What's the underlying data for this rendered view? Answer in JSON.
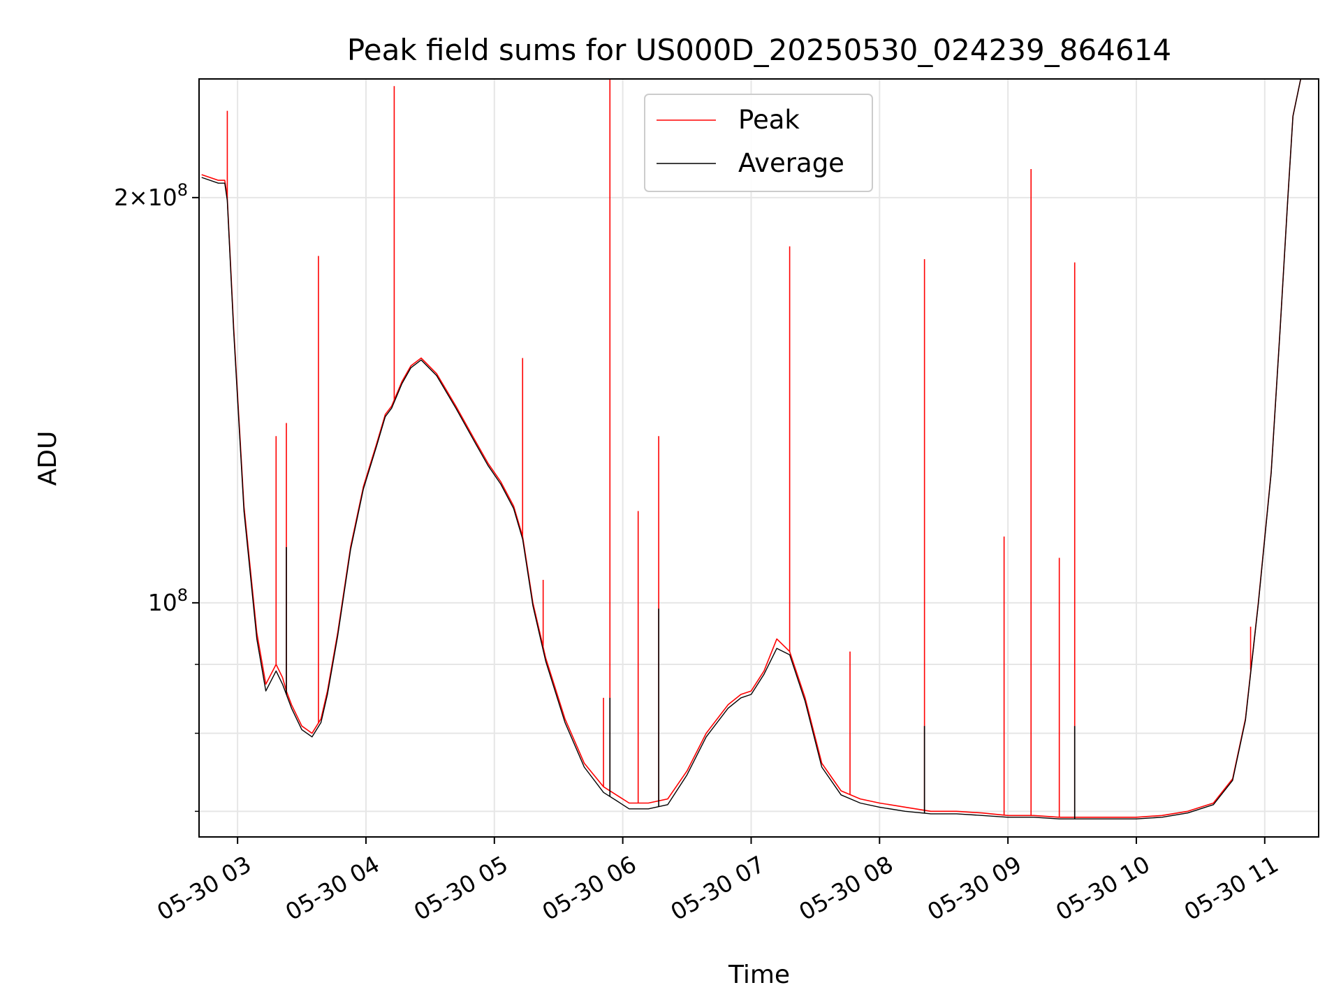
{
  "chart_data": {
    "type": "line",
    "title": "Peak field sums for US000D_20250530_024239_864614",
    "xlabel": "Time",
    "ylabel": "ADU",
    "x_unit": "hour",
    "x_date": "05-30",
    "xlim": [
      "05-30 02:42",
      "05-30 11:25"
    ],
    "yscale": "log",
    "ylim": [
      67000000,
      245000000
    ],
    "grid": true,
    "legend_position": "top-center",
    "x_ticks": [
      "05-30 03",
      "05-30 04",
      "05-30 05",
      "05-30 06",
      "05-30 07",
      "05-30 08",
      "05-30 09",
      "05-30 10",
      "05-30 11"
    ],
    "x_tick_values": [
      3,
      4,
      5,
      6,
      7,
      8,
      9,
      10,
      11
    ],
    "y_ticks": [
      {
        "value": 100000000,
        "label": "10^8"
      },
      {
        "value": 200000000,
        "label": "2×10^8"
      }
    ],
    "y_minor_ticks": [
      60000000,
      70000000,
      80000000,
      90000000
    ],
    "series": [
      {
        "name": "Peak",
        "color": "#ff0000",
        "x": [
          2.72,
          2.85,
          2.9,
          2.92,
          2.97,
          3.05,
          3.15,
          3.22,
          3.3,
          3.35,
          3.38,
          3.42,
          3.5,
          3.58,
          3.65,
          3.7,
          3.78,
          3.88,
          3.98,
          4.08,
          4.15,
          4.2,
          4.28,
          4.35,
          4.43,
          4.55,
          4.7,
          4.85,
          4.95,
          5.05,
          5.15,
          5.22,
          5.3,
          5.4,
          5.55,
          5.7,
          5.85,
          5.95,
          6.05,
          6.12,
          6.2,
          6.35,
          6.5,
          6.65,
          6.82,
          6.92,
          7.0,
          7.1,
          7.2,
          7.3,
          7.42,
          7.55,
          7.7,
          7.85,
          8.0,
          8.2,
          8.4,
          8.6,
          8.8,
          9.0,
          9.2,
          9.4,
          9.6,
          9.8,
          10.0,
          10.2,
          10.4,
          10.6,
          10.75,
          10.85,
          10.95,
          11.05,
          11.12,
          11.18,
          11.22,
          11.28,
          11.35,
          11.42
        ],
        "y": [
          208000000,
          206000000,
          206000000,
          200000000,
          160000000,
          118000000,
          95000000,
          87000000,
          90000000,
          88000000,
          86000000,
          84000000,
          81000000,
          80000000,
          82000000,
          86000000,
          95000000,
          110000000,
          122000000,
          131000000,
          138000000,
          140000000,
          146000000,
          150000000,
          152000000,
          148000000,
          140000000,
          132000000,
          127000000,
          123000000,
          118000000,
          112000000,
          100000000,
          91000000,
          82000000,
          76000000,
          73000000,
          72000000,
          71000000,
          71000000,
          71000000,
          71500000,
          75000000,
          80000000,
          84000000,
          85500000,
          86000000,
          89000000,
          94000000,
          92000000,
          85000000,
          76000000,
          72500000,
          71500000,
          71000000,
          70500000,
          70000000,
          70000000,
          69800000,
          69500000,
          69500000,
          69300000,
          69300000,
          69300000,
          69300000,
          69500000,
          70000000,
          71000000,
          74000000,
          82000000,
          100000000,
          125000000,
          160000000,
          200000000,
          230000000,
          245000000,
          246000000,
          246000000
        ],
        "spikes": [
          {
            "x": 2.92,
            "y": 232000000
          },
          {
            "x": 3.3,
            "y": 133000000
          },
          {
            "x": 3.38,
            "y": 136000000
          },
          {
            "x": 3.63,
            "y": 181000000
          },
          {
            "x": 4.22,
            "y": 242000000
          },
          {
            "x": 5.22,
            "y": 152000000
          },
          {
            "x": 5.38,
            "y": 104000000
          },
          {
            "x": 5.85,
            "y": 85000000
          },
          {
            "x": 5.9,
            "y": 246000000
          },
          {
            "x": 6.12,
            "y": 117000000
          },
          {
            "x": 6.28,
            "y": 133000000
          },
          {
            "x": 7.3,
            "y": 184000000
          },
          {
            "x": 7.77,
            "y": 92000000
          },
          {
            "x": 8.35,
            "y": 180000000
          },
          {
            "x": 8.97,
            "y": 112000000
          },
          {
            "x": 9.18,
            "y": 210000000
          },
          {
            "x": 9.4,
            "y": 108000000
          },
          {
            "x": 9.52,
            "y": 179000000
          },
          {
            "x": 10.89,
            "y": 96000000
          }
        ]
      },
      {
        "name": "Average",
        "color": "#000000",
        "x": [
          2.72,
          2.85,
          2.9,
          2.92,
          2.97,
          3.05,
          3.15,
          3.22,
          3.3,
          3.35,
          3.38,
          3.42,
          3.5,
          3.58,
          3.65,
          3.7,
          3.78,
          3.88,
          3.98,
          4.08,
          4.15,
          4.2,
          4.28,
          4.35,
          4.43,
          4.55,
          4.7,
          4.85,
          4.95,
          5.05,
          5.15,
          5.22,
          5.3,
          5.4,
          5.55,
          5.7,
          5.85,
          5.95,
          6.05,
          6.12,
          6.2,
          6.35,
          6.5,
          6.65,
          6.82,
          6.92,
          7.0,
          7.1,
          7.2,
          7.3,
          7.42,
          7.55,
          7.7,
          7.85,
          8.0,
          8.2,
          8.4,
          8.6,
          8.8,
          9.0,
          9.2,
          9.4,
          9.6,
          9.8,
          10.0,
          10.2,
          10.4,
          10.6,
          10.75,
          10.85,
          10.95,
          11.05,
          11.12,
          11.18,
          11.22,
          11.28,
          11.35,
          11.42
        ],
        "y": [
          207000000,
          205000000,
          205000000,
          199000000,
          159000000,
          117000000,
          94000000,
          86000000,
          89000000,
          87000000,
          85500000,
          83500000,
          80500000,
          79500000,
          81500000,
          85500000,
          94500000,
          109500000,
          121500000,
          130500000,
          137500000,
          139500000,
          145500000,
          149500000,
          151500000,
          147500000,
          139500000,
          131500000,
          126500000,
          122500000,
          117500000,
          111500000,
          99500000,
          90500000,
          81500000,
          75500000,
          72300000,
          71300000,
          70300000,
          70300000,
          70300000,
          70800000,
          74500000,
          79500000,
          83500000,
          85000000,
          85500000,
          88500000,
          92500000,
          91500000,
          84500000,
          75500000,
          72000000,
          71000000,
          70500000,
          70000000,
          69700000,
          69700000,
          69500000,
          69300000,
          69300000,
          69100000,
          69100000,
          69100000,
          69100000,
          69300000,
          69800000,
          70800000,
          73800000,
          81800000,
          99800000,
          124800000,
          159800000,
          199800000,
          229800000,
          245000000,
          246000000,
          246000000
        ],
        "spikes": [
          {
            "x": 3.38,
            "y": 110000000
          },
          {
            "x": 5.9,
            "y": 85000000
          },
          {
            "x": 6.28,
            "y": 99000000
          },
          {
            "x": 8.35,
            "y": 81000000
          },
          {
            "x": 9.52,
            "y": 81000000
          }
        ]
      }
    ]
  }
}
